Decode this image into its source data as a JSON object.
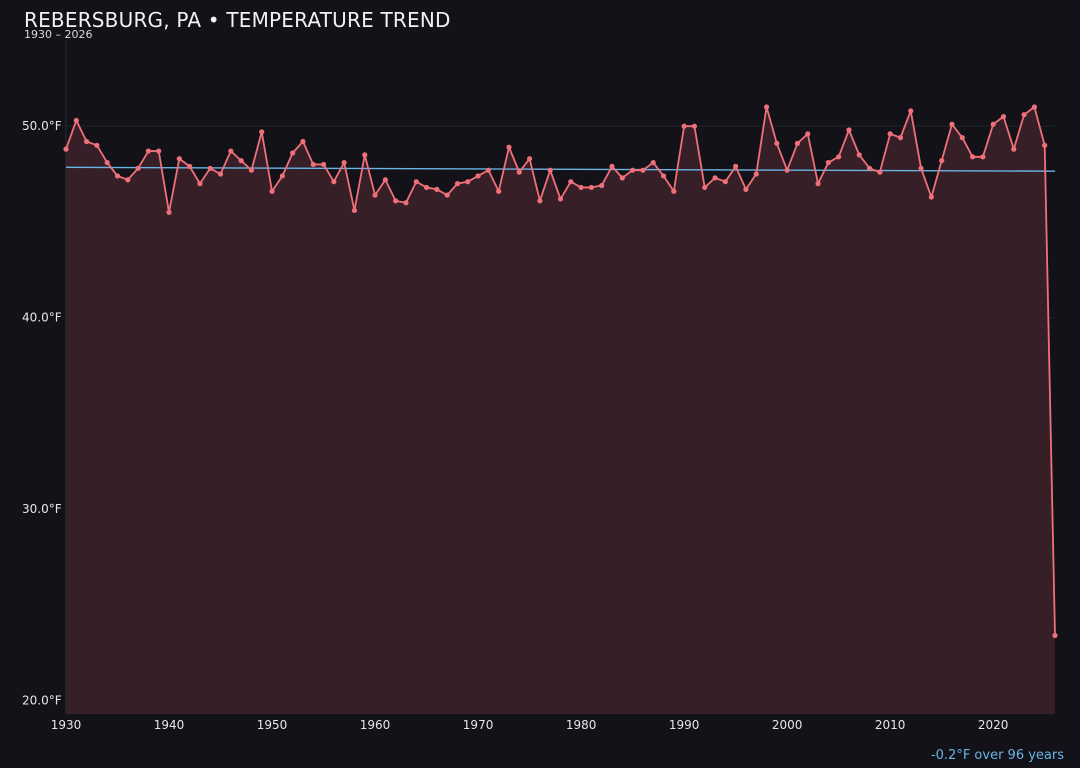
{
  "chart_data": {
    "type": "line",
    "title": "REBERSBURG, PA • TEMPERATURE TREND",
    "subtitle": "1930 – 2026",
    "x_range": [
      1930,
      2026
    ],
    "ylim": [
      19.3,
      54.5
    ],
    "y_ticks": [
      20,
      30,
      40,
      50
    ],
    "y_tick_labels": [
      "20.0°F",
      "30.0°F",
      "40.0°F",
      "50.0°F"
    ],
    "x_ticks": [
      1930,
      1940,
      1950,
      1960,
      1970,
      1980,
      1990,
      2000,
      2010,
      2020
    ],
    "x_tick_labels": [
      "1930",
      "1940",
      "1950",
      "1960",
      "1970",
      "1980",
      "1990",
      "2000",
      "2010",
      "2020"
    ],
    "grid": "horizontal",
    "series": [
      {
        "role": "annual-mean",
        "color": "#f0707a",
        "x": [
          1930,
          1931,
          1932,
          1933,
          1934,
          1935,
          1936,
          1937,
          1938,
          1939,
          1940,
          1941,
          1942,
          1943,
          1944,
          1945,
          1946,
          1947,
          1948,
          1949,
          1950,
          1951,
          1952,
          1953,
          1954,
          1955,
          1956,
          1957,
          1958,
          1959,
          1960,
          1961,
          1962,
          1963,
          1964,
          1965,
          1966,
          1967,
          1968,
          1969,
          1970,
          1971,
          1972,
          1973,
          1974,
          1975,
          1976,
          1977,
          1978,
          1979,
          1980,
          1981,
          1982,
          1983,
          1984,
          1985,
          1986,
          1987,
          1988,
          1989,
          1990,
          1991,
          1992,
          1993,
          1994,
          1995,
          1996,
          1997,
          1998,
          1999,
          2000,
          2001,
          2002,
          2003,
          2004,
          2005,
          2006,
          2007,
          2008,
          2009,
          2010,
          2011,
          2012,
          2013,
          2014,
          2015,
          2016,
          2017,
          2018,
          2019,
          2020,
          2021,
          2022,
          2023,
          2024,
          2025,
          2026
        ],
        "y": [
          48.8,
          50.3,
          49.2,
          49.0,
          48.1,
          47.4,
          47.2,
          47.8,
          48.7,
          48.7,
          45.5,
          48.3,
          47.9,
          47.0,
          47.8,
          47.5,
          48.7,
          48.2,
          47.7,
          49.7,
          46.6,
          47.4,
          48.6,
          49.2,
          48.0,
          48.0,
          47.1,
          48.1,
          45.6,
          48.5,
          46.4,
          47.2,
          46.1,
          46.0,
          47.1,
          46.8,
          46.7,
          46.4,
          47.0,
          47.1,
          47.4,
          47.7,
          46.6,
          48.9,
          47.6,
          48.3,
          46.1,
          47.7,
          46.2,
          47.1,
          46.8,
          46.8,
          46.9,
          47.9,
          47.3,
          47.7,
          47.7,
          48.1,
          47.4,
          46.6,
          50.0,
          50.0,
          46.8,
          47.3,
          47.1,
          47.9,
          46.7,
          47.5,
          51.0,
          49.1,
          47.7,
          49.1,
          49.6,
          47.0,
          48.1,
          48.4,
          49.8,
          48.5,
          47.8,
          47.6,
          49.6,
          49.4,
          50.8,
          47.8,
          46.3,
          48.2,
          50.1,
          49.4,
          48.4,
          48.4,
          50.1,
          50.5,
          48.8,
          50.6,
          51.0,
          49.0,
          23.4
        ]
      },
      {
        "role": "linear-trend",
        "color": "#6ab4e6",
        "x": [
          1930,
          2026
        ],
        "y": [
          47.85,
          47.65
        ]
      }
    ],
    "annotation": "-0.2°F over 96 years"
  }
}
